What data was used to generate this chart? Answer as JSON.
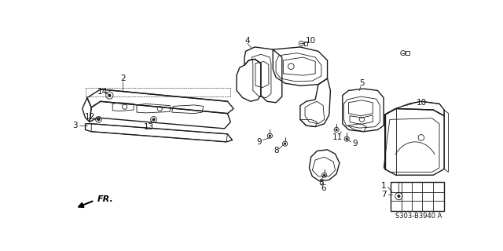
{
  "bg_color": "#ffffff",
  "diagram_code": "S303-B3940 A",
  "line_color": "#1a1a1a",
  "text_color": "#111111"
}
